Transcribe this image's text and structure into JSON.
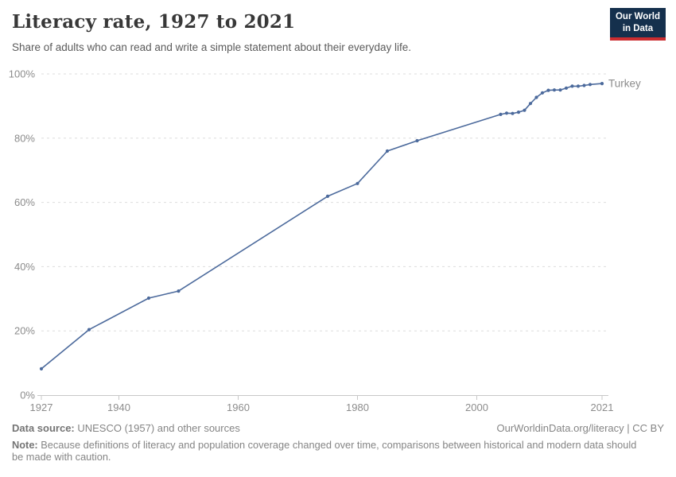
{
  "header": {
    "title": "Literacy rate, 1927 to 2021",
    "subtitle": "Share of adults who can read and write a simple statement about their everyday life.",
    "logo_line1": "Our World",
    "logo_line2": "in Data"
  },
  "chart_data": {
    "type": "line",
    "title": "Literacy rate, 1927 to 2021",
    "xlabel": "",
    "ylabel": "",
    "xlim": [
      1927,
      2021
    ],
    "ylim": [
      0,
      100
    ],
    "x_tick_values": [
      1927,
      1940,
      1960,
      1980,
      2000,
      2021
    ],
    "y_tick_values": [
      0,
      20,
      40,
      60,
      80,
      100
    ],
    "y_tick_suffix": "%",
    "grid": "horizontal-dashed",
    "legend_position": "end-of-line-label",
    "series": [
      {
        "name": "Turkey",
        "color": "#4C6A9C",
        "points": [
          [
            1927,
            8.2
          ],
          [
            1935,
            20.4
          ],
          [
            1945,
            30.2
          ],
          [
            1950,
            32.4
          ],
          [
            1975,
            61.9
          ],
          [
            1980,
            65.9
          ],
          [
            1985,
            76.0
          ],
          [
            1990,
            79.2
          ],
          [
            2004,
            87.4
          ],
          [
            2005,
            87.8
          ],
          [
            2006,
            87.7
          ],
          [
            2007,
            88.1
          ],
          [
            2008,
            88.7
          ],
          [
            2009,
            90.8
          ],
          [
            2010,
            92.7
          ],
          [
            2011,
            94.1
          ],
          [
            2012,
            94.9
          ],
          [
            2013,
            95.0
          ],
          [
            2014,
            95.0
          ],
          [
            2015,
            95.6
          ],
          [
            2016,
            96.2
          ],
          [
            2017,
            96.2
          ],
          [
            2018,
            96.4
          ],
          [
            2019,
            96.7
          ],
          [
            2021,
            97.0
          ]
        ]
      }
    ]
  },
  "colors": {
    "line": "#4C6A9C",
    "end_label": "#5b7db1",
    "grid": "#dddddd",
    "axis": "#c8c8c8",
    "tick_text": "#8c8c8c",
    "logo_bg": "#15304d",
    "logo_red": "#cb2d30"
  },
  "footer": {
    "datasource_label": "Data source:",
    "datasource_value": " UNESCO (1957) and other sources",
    "link_text": "OurWorldinData.org/literacy | CC BY",
    "note_label": "Note:",
    "note_value": " Because definitions of literacy and population coverage changed over time, comparisons between historical and modern data should be made with caution."
  }
}
